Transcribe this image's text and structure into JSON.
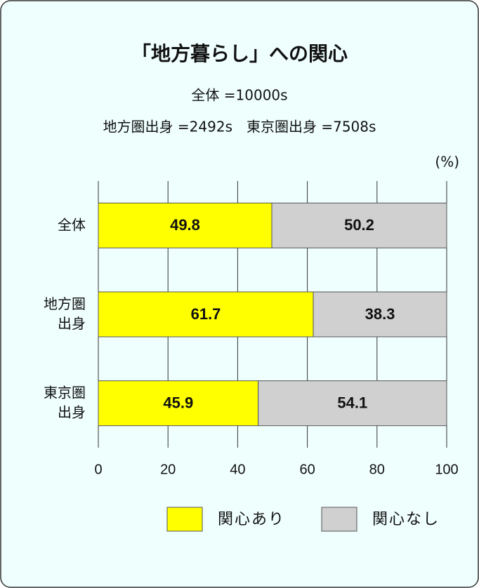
{
  "chart_data": {
    "type": "stacked-bar-horizontal",
    "title": "「地方暮らし」への関心",
    "subtitle": [
      "全体 =10000s",
      "地方圏出身 =2492s　東京圏出身 =7508s"
    ],
    "unit": "(%)",
    "categories": [
      "全体",
      "地方圏\n出身",
      "東京圏\n出身"
    ],
    "series": [
      {
        "name": "関心あり",
        "color": "#ffff00",
        "values": [
          49.8,
          61.7,
          45.9
        ]
      },
      {
        "name": "関心なし",
        "color": "#d0d0d0",
        "values": [
          50.2,
          38.3,
          54.1
        ]
      }
    ],
    "xlim": [
      0,
      100
    ],
    "xticks": [
      0,
      20,
      40,
      60,
      80,
      100
    ],
    "grid": true
  }
}
